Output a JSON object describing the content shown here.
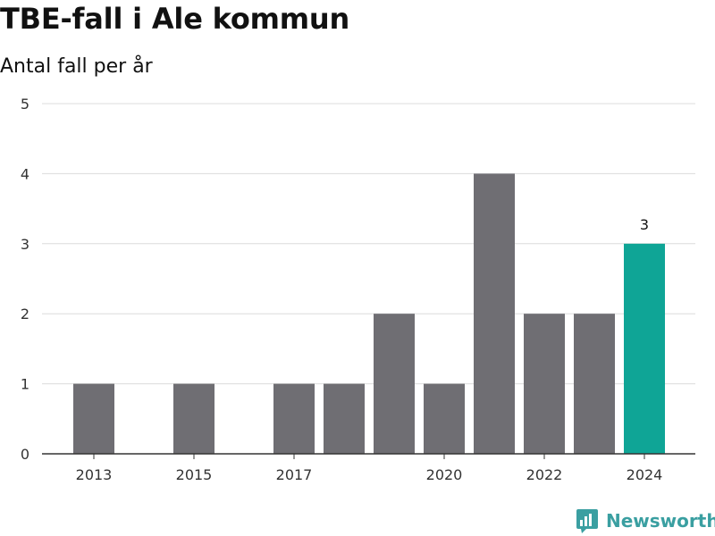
{
  "title": "TBE-fall i Ale kommun",
  "subtitle": "Antal fall per år",
  "brand": {
    "name": "Newsworthy",
    "icon": "newsworthy-logo-icon",
    "color": "#3a9fa1"
  },
  "chart_data": {
    "type": "bar",
    "x": [
      2013,
      2014,
      2015,
      2016,
      2017,
      2018,
      2019,
      2020,
      2021,
      2022,
      2023,
      2024
    ],
    "values": [
      1,
      0,
      1,
      0,
      1,
      1,
      2,
      1,
      4,
      2,
      2,
      3
    ],
    "x_tick_labels": [
      "2013",
      "2015",
      "2017",
      "2020",
      "2022",
      "2024"
    ],
    "y_ticks": [
      0,
      1,
      2,
      3,
      4,
      5
    ],
    "ylim": [
      0,
      5
    ],
    "grid": true,
    "bar_color": "#6f6e73",
    "highlight": {
      "x": 2024,
      "color": "#0fa596",
      "label": "3"
    }
  }
}
